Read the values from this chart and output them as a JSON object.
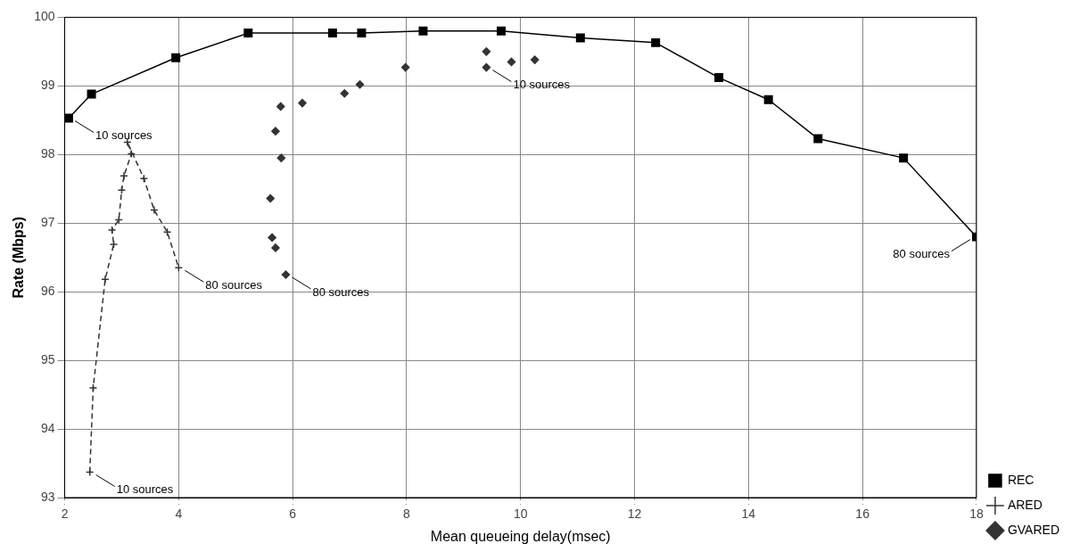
{
  "chart_data": {
    "type": "line",
    "xlabel": "Mean queueing delay(msec)",
    "ylabel": "Rate (Mbps)",
    "xlim": [
      2,
      18
    ],
    "xticks": [
      2,
      4,
      6,
      8,
      10,
      12,
      14,
      16,
      18
    ],
    "ylim": [
      93,
      100
    ],
    "yticks": [
      93,
      94,
      95,
      96,
      97,
      98,
      99,
      100
    ],
    "grid": true,
    "legend": "bottom right",
    "series": [
      {
        "name": "REC",
        "color": "#000000",
        "marker": "square",
        "line_style": "solid",
        "x": [
          2.07,
          2.47,
          3.95,
          5.22,
          6.7,
          7.21,
          8.29,
          9.66,
          11.05,
          12.37,
          13.48,
          14.35,
          15.22,
          16.72,
          18
        ],
        "values": [
          98.53,
          98.88,
          99.41,
          99.77,
          99.77,
          99.77,
          99.8,
          99.8,
          99.7,
          99.63,
          99.12,
          98.8,
          98.23,
          97.95,
          96.8
        ]
      },
      {
        "name": "ARED",
        "color": "#333333",
        "marker": "cross",
        "line_style": "dashed",
        "x": [
          2.44,
          2.5,
          2.71,
          2.86,
          2.83,
          2.95,
          3.0,
          3.04,
          3.17,
          3.1,
          3.39,
          3.57,
          3.8,
          4.0
        ],
        "values": [
          93.37,
          94.6,
          96.18,
          96.69,
          96.9,
          97.05,
          97.48,
          97.69,
          98.01,
          98.18,
          97.65,
          97.19,
          96.87,
          96.35
        ]
      },
      {
        "name": "GVARED",
        "type": "scatter",
        "color": "#333333",
        "marker": "diamond",
        "x": [
          5.88,
          5.7,
          5.64,
          5.61,
          5.8,
          5.7,
          5.79,
          6.17,
          6.91,
          7.18,
          7.98,
          9.4,
          9.4,
          9.84,
          10.25
        ],
        "values": [
          96.25,
          96.64,
          96.79,
          97.36,
          97.95,
          98.34,
          98.7,
          98.75,
          98.89,
          99.02,
          99.27,
          99.27,
          99.5,
          99.35,
          99.38
        ]
      }
    ],
    "annotations": [
      {
        "text": "10 sources",
        "x": 2.07,
        "y": 98.53
      },
      {
        "text": "10 sources",
        "x": 2.44,
        "y": 93.37
      },
      {
        "text": "80 sources",
        "x": 4.0,
        "y": 96.35
      },
      {
        "text": "80 sources",
        "x": 5.88,
        "y": 96.25
      },
      {
        "text": "10 sources",
        "x": 9.4,
        "y": 99.27
      },
      {
        "text": "80 sources",
        "x": 18,
        "y": 96.8
      }
    ]
  }
}
